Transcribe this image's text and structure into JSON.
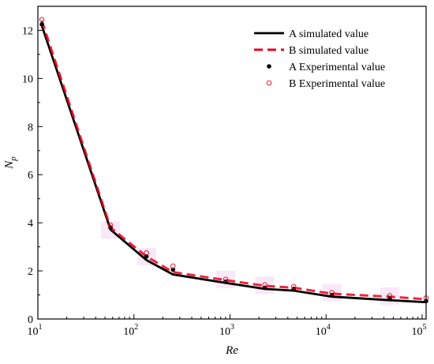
{
  "chart_data": {
    "type": "line",
    "xlabel": "Re",
    "ylabel": "N",
    "ylabel_sub": "p",
    "xscale": "log",
    "xlim": [
      10,
      110000
    ],
    "ylim": [
      0,
      13
    ],
    "x_ticks": [
      {
        "value": 10,
        "base": "10",
        "exp": "1"
      },
      {
        "value": 100,
        "base": "10",
        "exp": "2"
      },
      {
        "value": 1000,
        "base": "10",
        "exp": "3"
      },
      {
        "value": 10000,
        "base": "10",
        "exp": "4"
      },
      {
        "value": 100000,
        "base": "10",
        "exp": "5"
      }
    ],
    "y_ticks": [
      0,
      2,
      4,
      6,
      8,
      10,
      12
    ],
    "grid": false,
    "legend_position": "top-right",
    "series": [
      {
        "name": "A simulated value",
        "style": "solid",
        "color": "#000000",
        "x": [
          11,
          57,
          135,
          255,
          900,
          2300,
          4600,
          11500,
          46000,
          110000
        ],
        "y": [
          12.2,
          3.72,
          2.45,
          1.85,
          1.5,
          1.25,
          1.18,
          0.93,
          0.78,
          0.7
        ]
      },
      {
        "name": "B simulated value",
        "style": "dashed",
        "color": "#e8001c",
        "x": [
          11,
          57,
          135,
          255,
          900,
          2300,
          4600,
          11500,
          46000,
          110000
        ],
        "y": [
          12.4,
          3.8,
          2.6,
          1.95,
          1.62,
          1.38,
          1.3,
          1.05,
          0.93,
          0.82
        ]
      },
      {
        "name": "A Experimental value",
        "style": "filled-circle",
        "color": "#000000",
        "x": [
          11,
          57,
          135,
          255,
          900,
          2300,
          4600,
          11500,
          46000,
          110000
        ],
        "y": [
          12.25,
          3.8,
          2.6,
          2.05,
          1.55,
          1.3,
          1.25,
          1.0,
          0.85,
          0.75
        ]
      },
      {
        "name": "B Experimental value",
        "style": "open-circle",
        "color": "#e8001c",
        "x": [
          11,
          57,
          135,
          255,
          900,
          2300,
          4600,
          11500,
          46000,
          110000
        ],
        "y": [
          12.45,
          3.9,
          2.75,
          2.2,
          1.65,
          1.42,
          1.35,
          1.1,
          0.97,
          0.87
        ]
      }
    ]
  }
}
